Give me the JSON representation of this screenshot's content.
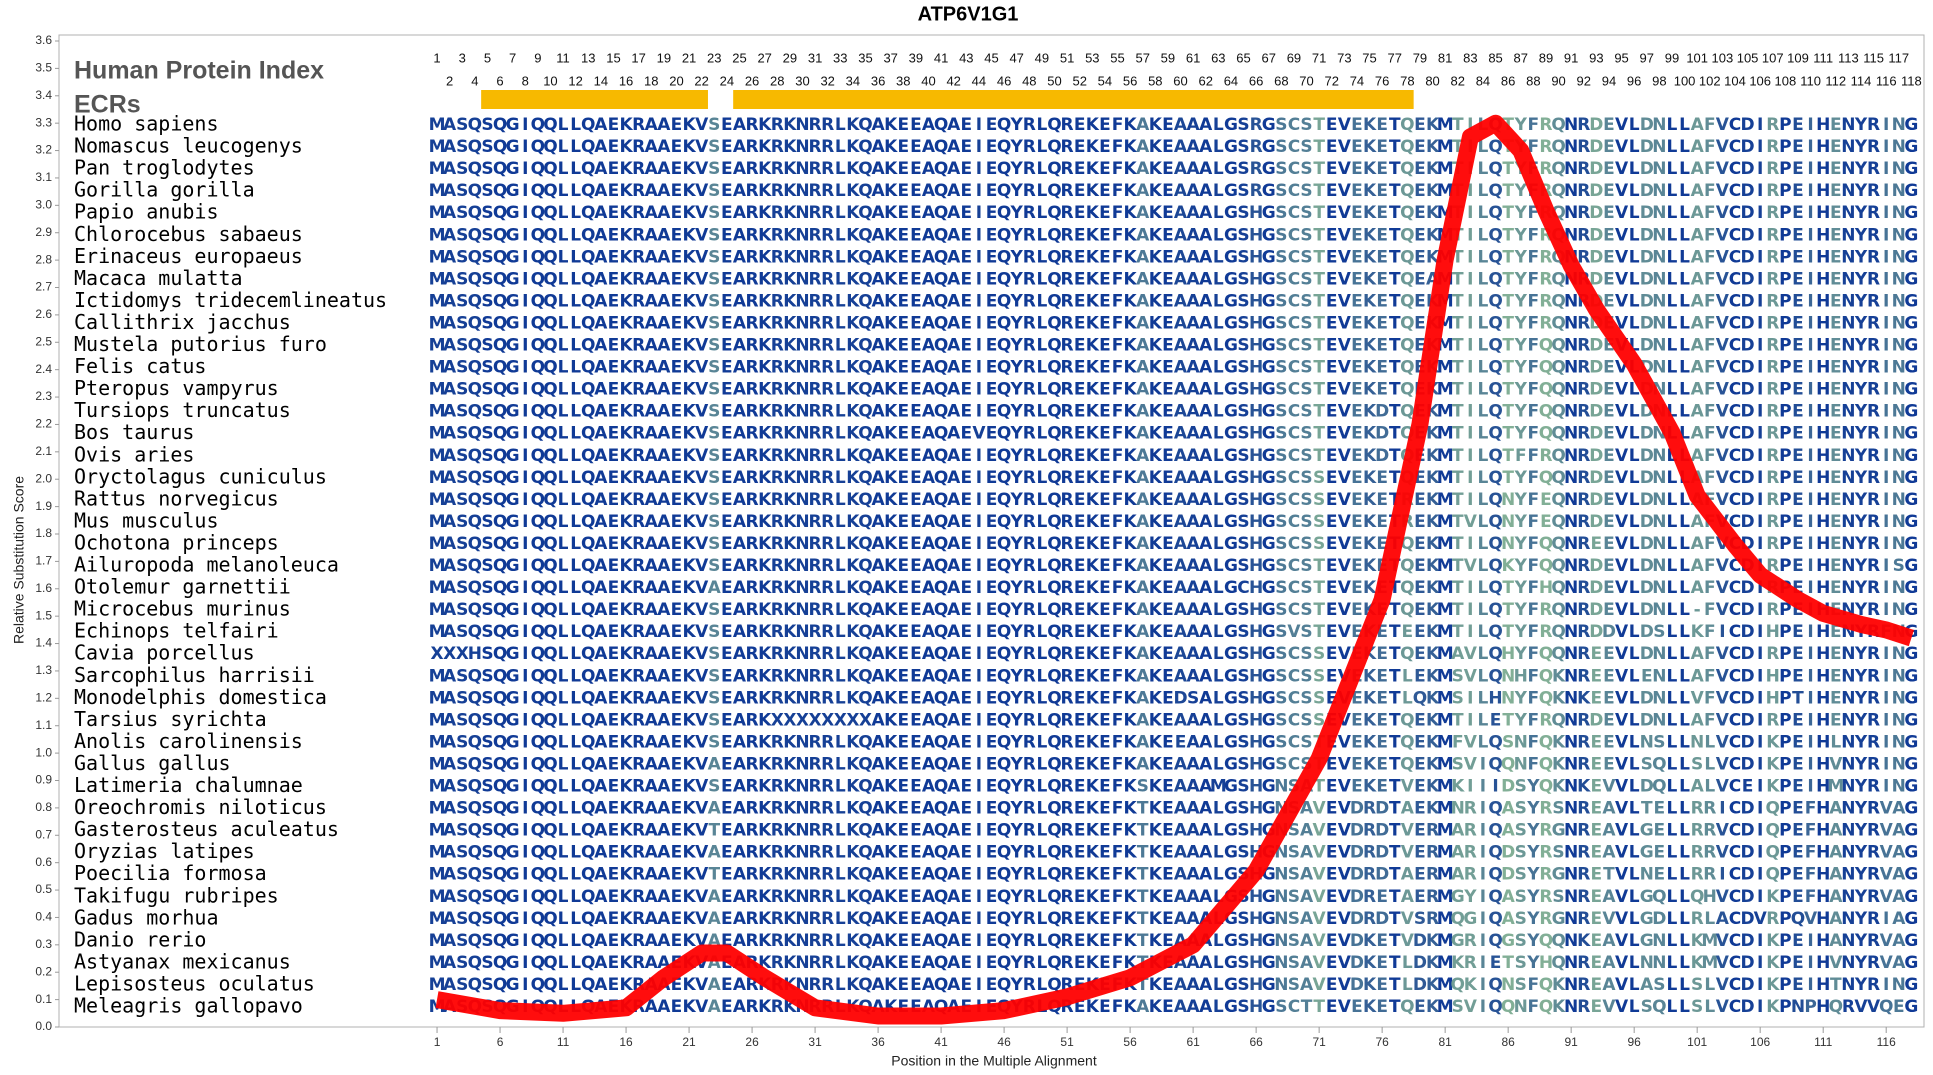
{
  "chart_data": {
    "type": "line",
    "title": "ATP6V1G1",
    "x_label": "Position in the Multiple Alignment",
    "y_label": "Relative Substitution Score",
    "x": [
      1,
      6,
      11,
      16,
      19,
      22,
      24,
      27,
      31,
      36,
      41,
      46,
      51,
      56,
      61,
      66,
      71,
      76,
      79,
      81,
      83,
      85,
      87,
      89,
      91,
      93,
      96,
      99,
      101,
      104,
      106,
      109,
      111,
      114,
      116,
      118
    ],
    "values": [
      0.1,
      0.06,
      0.05,
      0.07,
      0.18,
      0.27,
      0.27,
      0.18,
      0.07,
      0.04,
      0.04,
      0.06,
      0.11,
      0.18,
      0.3,
      0.57,
      0.98,
      1.56,
      2.2,
      2.8,
      3.25,
      3.3,
      3.2,
      2.98,
      2.78,
      2.62,
      2.42,
      2.17,
      1.94,
      1.76,
      1.65,
      1.56,
      1.51,
      1.47,
      1.45,
      1.42
    ],
    "color": "#ff0000",
    "xlim": [
      -29,
      119
    ],
    "xticks": [
      1,
      6,
      11,
      16,
      21,
      26,
      31,
      36,
      41,
      46,
      51,
      56,
      61,
      66,
      71,
      76,
      81,
      86,
      91,
      96,
      101,
      106,
      111,
      116
    ],
    "ylim": [
      0,
      3.6
    ],
    "yticks": [
      {
        "value": 0,
        "label": "0.0"
      },
      0.1,
      0.2,
      0.3,
      0.4,
      0.5,
      0.6,
      0.7,
      0.8,
      0.9,
      {
        "value": 1,
        "label": "1.0"
      },
      1.1,
      1.2,
      1.3,
      1.4,
      1.5,
      1.6,
      1.7,
      1.8,
      1.9,
      {
        "value": 2,
        "label": "2.0"
      },
      2.1,
      2.2,
      2.3,
      2.4,
      2.5,
      2.6,
      2.7,
      2.8,
      2.9,
      {
        "value": 3,
        "label": "3.0"
      },
      3.1,
      3.2,
      3.3,
      3.4,
      3.5,
      3.6
    ]
  },
  "alignment": {
    "index_title": "Human Protein Index",
    "index": [
      1,
      2,
      3,
      4,
      5,
      6,
      7,
      8,
      9,
      10,
      11,
      12,
      13,
      14,
      15,
      16,
      17,
      18,
      19,
      20,
      21,
      22,
      23,
      24,
      25,
      26,
      27,
      28,
      29,
      30,
      31,
      32,
      33,
      34,
      35,
      36,
      37,
      38,
      39,
      40,
      41,
      42,
      43,
      44,
      45,
      46,
      47,
      48,
      49,
      50,
      51,
      52,
      53,
      54,
      55,
      56,
      57,
      58,
      59,
      60,
      61,
      62,
      63,
      64,
      65,
      66,
      67,
      68,
      69,
      70,
      71,
      72,
      73,
      74,
      75,
      76,
      77,
      78,
      79,
      80,
      81,
      82,
      83,
      84,
      85,
      86,
      87,
      88,
      89,
      90,
      91,
      92,
      93,
      94,
      95,
      96,
      97,
      98,
      99,
      100,
      101,
      102,
      103,
      104,
      105,
      106,
      107,
      108,
      109,
      110,
      111,
      112,
      113,
      114,
      115,
      116,
      117,
      118
    ],
    "ecr_title": "ECRs",
    "ecrs": [
      [
        5,
        22
      ],
      [
        25,
        78
      ]
    ],
    "ecr_color": "#f7b900",
    "species": [
      "Homo sapiens",
      "Nomascus leucogenys",
      "Pan troglodytes",
      "Gorilla gorilla",
      "Papio anubis",
      "Chlorocebus sabaeus",
      "Erinaceus europaeus",
      "Macaca mulatta",
      "Ictidomys tridecemlineatus",
      "Callithrix jacchus",
      "Mustela putorius furo",
      "Felis catus",
      "Pteropus vampyrus",
      "Tursiops truncatus",
      "Bos taurus",
      "Ovis aries",
      "Oryctolagus cuniculus",
      "Rattus norvegicus",
      "Mus musculus",
      "Ochotona princeps",
      "Ailuropoda melanoleuca",
      "Otolemur garnettii",
      "Microcebus murinus",
      "Echinops telfairi",
      "Cavia porcellus",
      "Sarcophilus harrisii",
      "Monodelphis domestica",
      "Tarsius syrichta",
      "Anolis carolinensis",
      "Gallus gallus",
      "Latimeria chalumnae",
      "Oreochromis niloticus",
      "Gasterosteus aculeatus",
      "Oryzias latipes",
      "Poecilia formosa",
      "Takifugu rubripes",
      "Gadus morhua",
      "Danio rerio",
      "Astyanax mexicanus",
      "Lepisosteus oculatus",
      "Meleagris gallopavo"
    ],
    "sequences": [
      "MASQSQGIQQLLQAEKRAAEKVSEARKRKNRRLKQAKEEAQAEIEQYRLQREKEFKAKEAAALGSRGSCSTEVEKETQEKMTILQTYFRQNRDEVLDNLLAFVCDIRPEIHENYRING",
      "MASQSQGIQQLLQAEKRAAEKVSEARKRKNRRLKQAKEEAQAEIEQYRLQREKEFKAKEAAALGSRGSCSTEVEKETQEKMTILQTYFRQNRDEVLDNLLAFVCDIRPEIHENYRING",
      "MASQSQGIQQLLQAEKRAAEKVSEARKRKNRRLKQAKEEAQAEIEQYRLQREKEFKAKEAAALGSRGSCSTEVEKETQEKMTILQTYFRQNRDEVLDNLLAFVCDIRPEIHENYRING",
      "MASQSQGIQQLLQAEKRAAEKVSEARKRKNRRLKQAKEEAQAEIEQYRLQREKEFKAKEAAALGSRGSCSTEVEKETQEKMTILQTYFRQNRDEVLDNLLAFVCDIRPEIHENYRING",
      "MASQSQGIQQLLQAEKRAAEKVSEARKRKNRRLKQAKEEAQAEIEQYRLQREKEFKAKEAAALGSHGSCSTEVEKETQEKMTILQTYFRQNRDEVLDNLLAFVCDIRPEIHENYRING",
      "MASQSQGIQQLLQAEKRAAEKVSEARKRKNRRLKQAKEEAQAEIEQYRLQREKEFKAKEAAALGSHGSCSTEVEKETQEKMTILQTYFRQNRDEVLDNLLAFVCDIRPEIHENYRING",
      "MASQSQGIQQLLQAEKRAAEKVSEARKRKNRRLKQAKEEAQAEIEQYRLQREKEFKAKEAAALGSHGSCSTEVEKETQEKMTILQTYFRQNRDEVLDNLLAFVCDIRPEIHENYRING",
      "MASQSQGIQQLLQAEKRAAEKVSEARKRKNRRLKQAKEEAQAEIEQYRLQREKEFKAKEAAALGSHGSCSTEVEKETQEAMTILQTYFRQNRDEVLDNLLAFVCDIRPEIHENYRING",
      "MASQSQGIQQLLQAEKRAAEKVSEARKRKNRRLKQAKEEAQAEIEQYRLQREKEFKAKEAAALGSHGSCSTEVEKETQEKMTILQTYFRQNRDEVLDNLLAFVCDIRPEIHENYRING",
      "MASQSQGIQQLLQAEKRAAEKVSEARKRKNRRLKQAKEEAQAEIEQYRLQREKEFKAKEAAALGSHGSCSTEVEKETQEKMTILQTYFRQNRDEVLDNLLAFVCDIRPEIHENYRING",
      "MASQSQGIQQLLQAEKRAAEKVSEARKRKNRRLKQAKEEAQAEIEQYRLQREKEFKAKEAAALGSHGSCSTEVEKETQEKMTILQTYFQQNRDEVLDNLLAFVCDIRPEIHENYRING",
      "MASQSQGIQQLLQAEKRAAEKVSEARKRKNRRLKQAKEEAQAEIEQYRLQREKEFKAKEAAALGSHGSCSTEVEKETQEKMTILQTYFQQNRDEVLDNLLAFVCDIRPEIHENYRING",
      "MASQSQGIQQLLQAEKRAAEKVSEARKRKNRRLKQAKEEAQAEIEQYRLQREKEFKAKEAAALGSHGSCSTEVEKETQEKMTILQTYFQQNRDEVLDNLLAFVCDIRPEIHENYRING",
      "MASQSQGIQQLLQAEKRAAEKVSEARKRKNRRLKQAKEEAQAEIEQYRLQREKEFKAKEAAALGSHGSCSTEVEKDTQEKMTILQTYFQQNRDEVLDNLLAFVCDIRPEIHENYRING",
      "MASQSQGIQQLLQAEKRAAEKVSEARKRKNRRLKQAKEEAQAEVEQYRLQREKEFKAKEAAALGSHGSCSTEVEKDTQEKMTILQTYFQQNRDEVLDNLLAFVCDIRPEIHENYRING",
      "MASQSQGIQQLLQAEKRAAEKVSEARKRKNRRLKQAKEEAQAEIEQYRLQREKEFKAKEAAALGSHGSCSTEVEKDTQEKMTILQTFFRQNRDEVLDNLLAFVCDIRPEIHENYRING",
      "MASQSQGIQQLLQAEKRAAEKVSEARKRKNRRLKQAKEEAQAEIEQYRLQREKEFKAKEAAALGSHGSCSSEVEKETQEKMTILQTYFQQNRDEVLDNLLAFVCDIRPEIHENYRING",
      "MASQSQGIQQLLQAEKRAAEKVSEARKRKNRRLKQAKEEAQAEIEQYRLQREKEFKAKEAAALGSHGSCSSEVEKETREKMTILQNYFEQNRDEVLDNLLAFVCDIRPEIHENYRING",
      "MASQSQGIQQLLQAEKRAAEKVSEARKRKNRRLKQAKEEAQAEIEQYRLQREKEFKAKEAAALGSHGSCSSEVEKETREKMTVLQNYFEQNRDEVLDNLLAFVCDIRPEIHENYRING",
      "MASQSQGIQQLLQAEKRAAEKVSEARKRKNRRLKQAKEEAQAEIEQYRLQREKEFKAKEAAALGSHGSCSSEVEKETQEKMTILQNYFQQNREEVLDNLLAFVCDIRPEIHENYRING",
      "MASQSQGIQQLLQAEKRAAEKVSEARKRKNRRLKQAKEEAQAEIEQYRLQREKEFKAKEAAALGSHGSCSTEVEKETQEKMTVLQKYFQQNRDEVLDNLLAFVCDIRPEIHENYRISG",
      "MASQSQGIQQLLQAEKRAAEKVAEARKRKNRRLKQAKEEAQAEIEQYRLQREKEFKAKEAAALGCHGSCSTEVEKETQEKMTILQTYFHQNRDEVLDNLLAFVCDIRPEIHENYRING",
      "MASQSQGIQQLLQAEKRAAEKVSEARKRKNRRLKQAKEEAQAEIEQYRLQREKEFKAKEAAALGSHGSCSTEVEKETQEKMTILQTYFRQNRDEVLDNLL-FVCDIRPEIHENYRING",
      "MASQSQGIQQLLQAEKRAAEKVSEARKRKNRRLKQAKEEAQAEIEQYRLQREKEFKAKEAAALGSHGSVSTEVEKETEEKMTILQTYFRQNRDDVLDSLLKFICDIHPEIHENYRFNG",
      "XXXHSQGIQQLLQAEKRAAEKVSEARKRKNRRLKQAKEEAQAEIEQYRLQREKEFKAKEAAALGSHGSCSSEVEKETQEKMAVLQHYFQQNREEVLDNLLAFVCDIRPEIHENYRING",
      "MASQSQGIQQLLQAEKRAAEKVSEARKRKNRRLKQAKEEAQAEIEQYRLQREKEFKAKEAAALGSHGSCSSEVEKETLEKMSVLQNHFQKNREEVLENLLAFVCDIHPEIHENYRING",
      "MASQSQGIQQLLQAEKRAAEKVSEARKRKNRRLKQAKEEAQAEIEQYRLQREKEFKAKEDSALGSHGSCSSEVEKETLQKMSILHNYFQKNKEEVLDNLLVFVCDIHPTIHENYRING",
      "MASQSQGIQQLLQAEKRAAEKVSEARKXXXXXXXXAKEEAQAEIEQYRLQREKEFKAKEAAALGSHGSCSSEVEKETQEKMTILETYFRQNRDEVLDNLLAFVCDIRPEIHENYRING",
      "MASQSQGIQQLLQAEKRAAEKVSEARKRKNRRLKQAKEEAQAEIEQYRLQREKEFKAKEEAALGSHGSCSTEVEKETQEKMFVLQSNFQKNREEVLNSLLNLVCDIKPEIHLNYRING",
      "MASQSQGIQQLLQAEKRAAEKVAEARKRKNRRLKQAKEEAQAEIEQYRLQREKEFKAKEAAALGSHGSCSTEVEKETQEKMSVIQQNFQKNREEVLSQLLSLVCDIKPEIHVNYRING",
      "MASQSQGIQQLLQAEKRAAEKVSEARKRKNRRLKQAKEEAQAEIEQYRLQREKEFKSKEAAAMGSHGNSATEVEKETVEKMKIIIDSYQKNKEVVLDQLLALVCEIKPEIHMNYRING",
      "MASQSQGIQQLLQAEKRAAEKVAEARKRKNRRLKQAKEEAQAEIEQYRLQREKEFKTKEAAALGSHGNSAVEVDRDTAEKMNRIQASYRSNREAVLTELLRRICDIQPEFHANYRVAG",
      "MASQSQGIQQLLQAEKRAAEKVTEARKRKNRRLKQAKEEAQAEIEQYRLQREKEFKTKEAAALGSHGNSAVEVDRDTVERMARIQASYRGNREAVLGELLRRVCDIQPEFHANYRVAG",
      "MASQSQGIQQLLQAEKRAAEKVAEARKRKNRRLKQAKEEAQAEIEQYRLQREKEFKTKEAAALGSHGNSAVEVDRDTVERMARIQDSYRSNREAVLGELLRRVCDIQPEFHANYRVAG",
      "MASQSQGIQQLLQAEKRAAEKVTEARKRKNRRLKQAKEEAQAEIEQYRLQREKEFKTKEAAALGSHGNSAVEVDRDTAERMARIQDSYRGNRETVLNELLRRICDIQPEFHANYRVAG",
      "MASQSQGIQQLLQAEKRAAEKVAEARKRKNRRLKQAKEEAQAEIEQYRLQREKEFKTKEAAALGSHGNSAVEVDRETAERMGYIQASYRSNREAVLGQLLQHVCDIKPEFHANYRVAG",
      "MASQSQGIQQLLQAEKRAAEKVAEARKRKNRRLKQAKEEAQAEIEQYRLQREKEFKTKEAAALGSHGNSAVEVDRDTVSRMQGIQASYRGNREVVLGDLLRLACDVRPQVHANYRIAG",
      "MASQSQGIQQLLQAEKRAAEKVAEARKRKNRRLKQAKEEAQAEIEQYRLQREKEFKTKEAAALGSHGNSAVEVDKETVDKMGRIQGSYQQNKEAVLGNLLKMVCDIKPEIHANYRVAG",
      "MASQSQGIQQLLQAEKRAAEKVAEARKRKNRRLKQAKEEAQAEIEQYRLQREKEFKTKEAAALGSHGNSAVEVDKETLDKMKRIETSYHQNREAVLNNLLKMVCDIKPEIHVNYRVAG",
      "MASQSQGIQQLLQAEKRAAEKVAEARKRKNRRLKQAKEEAQAEIEQYRLQREKEFKTKEAAALGSHGNSAVEVDKETLDKMQKIQNSFQKNREAVLASLLSLVCDIKPEIHTNYRING",
      "MASQSQGIQQLLQAEKRAAEKVAEARKRKNRRLKQAKEEAQAEIEQYRLQREKEFKAKEAAALGSHGSCTTEVEKETQEKMSVIQQNFQKNREVVLSQLLSLVCDIKPNPHQRVVQEG"
    ]
  }
}
